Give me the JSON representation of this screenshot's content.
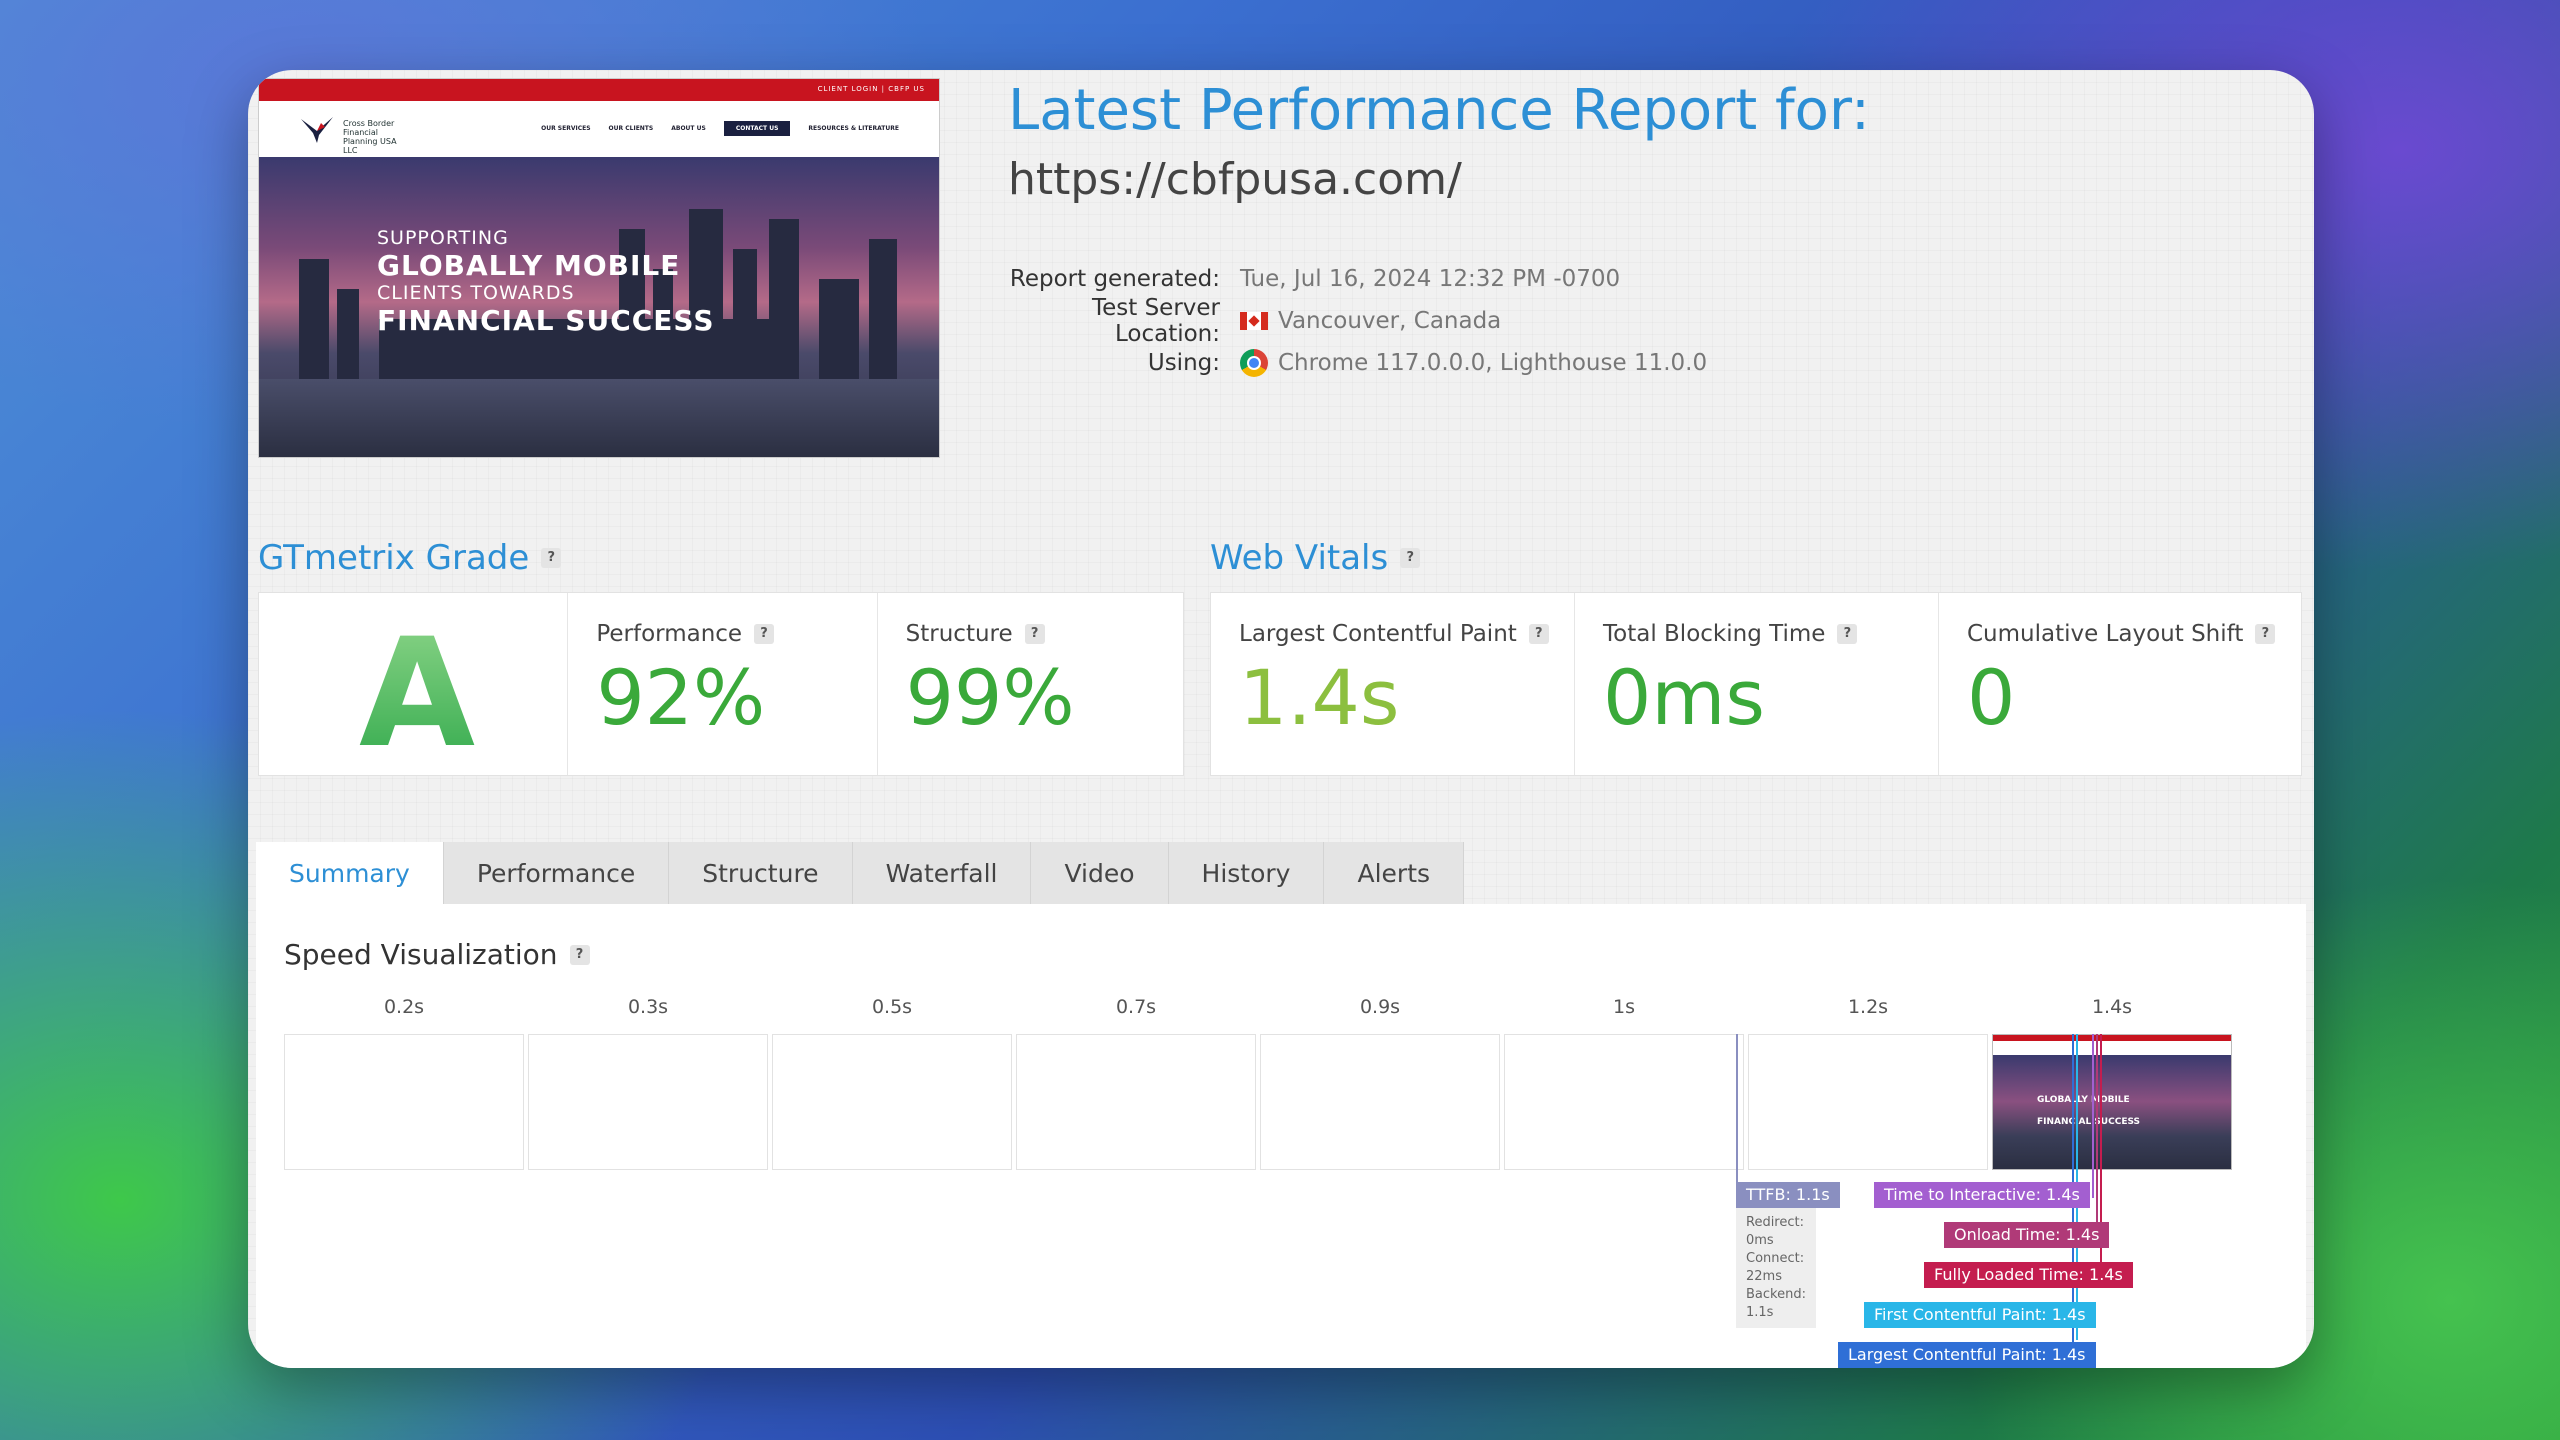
{
  "header": {
    "title": "Latest Performance Report for:",
    "url": "https://cbfpusa.com/",
    "meta": [
      {
        "label": "Report generated:",
        "value": "Tue, Jul 16, 2024 12:32 PM -0700"
      },
      {
        "label": "Test Server Location:",
        "value": "Vancouver, Canada",
        "icon": "canada-flag-icon"
      },
      {
        "label": "Using:",
        "value": "Chrome 117.0.0.0, Lighthouse 11.0.0",
        "icon": "chrome-icon"
      }
    ]
  },
  "thumbnail": {
    "topbar": "CLIENT LOGIN | CBFP US",
    "logo_text": "Cross Border Financial Planning USA LLC",
    "menu": [
      "OUR SERVICES",
      "OUR CLIENTS",
      "ABOUT US",
      "CONTACT US",
      "RESOURCES & LITERATURE"
    ],
    "headline": [
      "SUPPORTING",
      "GLOBALLY MOBILE",
      "CLIENTS TOWARDS",
      "FINANCIAL SUCCESS"
    ]
  },
  "grade": {
    "heading": "GTmetrix Grade",
    "letter": "A",
    "performance_label": "Performance",
    "performance_value": "92%",
    "structure_label": "Structure",
    "structure_value": "99%"
  },
  "vitals": {
    "heading": "Web Vitals",
    "lcp_label": "Largest Contentful Paint",
    "lcp_value": "1.4s",
    "tbt_label": "Total Blocking Time",
    "tbt_value": "0ms",
    "cls_label": "Cumulative Layout Shift",
    "cls_value": "0"
  },
  "tabs": [
    "Summary",
    "Performance",
    "Structure",
    "Waterfall",
    "Video",
    "History",
    "Alerts"
  ],
  "active_tab": "Summary",
  "speed": {
    "title": "Speed Visualization",
    "frame_times": [
      "0.2s",
      "0.3s",
      "0.5s",
      "0.7s",
      "0.9s",
      "1s",
      "1.2s",
      "1.4s"
    ],
    "mini_headline": [
      "GLOBALLY MOBILE",
      "FINANCIAL SUCCESS"
    ],
    "markers": {
      "ttfb": "TTFB: 1.1s",
      "ttfb_details": [
        "Redirect: 0ms",
        "Connect: 22ms",
        "Backend: 1.1s"
      ],
      "tti": "Time to Interactive: 1.4s",
      "onload": "Onload Time: 1.4s",
      "fully_loaded": "Fully Loaded Time: 1.4s",
      "fcp": "First Contentful Paint: 1.4s",
      "lcp": "Largest Contentful Paint: 1.4s"
    }
  },
  "colors": {
    "accent": "#2d8fd5",
    "good": "#3aa93a",
    "ttfb": "#8a8fc0",
    "tti": "#a35fd0",
    "onload": "#b03a78",
    "fully_loaded": "#c41d4f",
    "fcp": "#29b6e8",
    "lcp": "#2f6fd6"
  }
}
